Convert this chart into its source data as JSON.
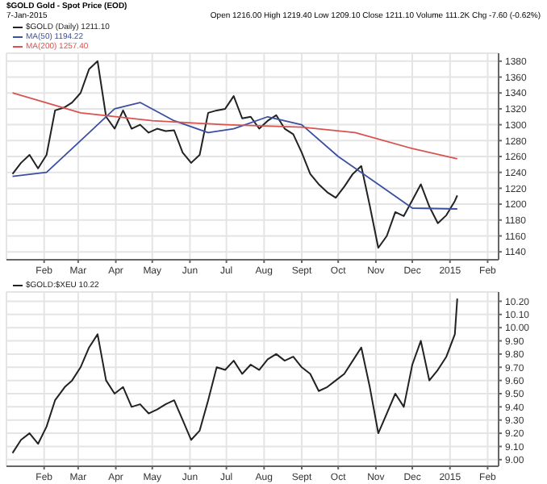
{
  "chart_data": [
    {
      "type": "line",
      "title": "$GOLD Gold - Spot Price (EOD)",
      "subtitle": "7-Jan-2015",
      "annotations": [
        "Open 1216.00  High 1219.40  Low 1209.10  Close 1211.10  Volume 111.2K  Chg -7.60 (-0.62%)"
      ],
      "legend": "top left",
      "grid": true,
      "xlim": [
        "2014-01-01",
        "2015-02-10"
      ],
      "xticks": [
        {
          "value": "2014-02-01",
          "label": "Feb"
        },
        {
          "value": "2014-03-01",
          "label": "Mar"
        },
        {
          "value": "2014-04-01",
          "label": "Apr"
        },
        {
          "value": "2014-05-01",
          "label": "May"
        },
        {
          "value": "2014-06-01",
          "label": "Jun"
        },
        {
          "value": "2014-07-01",
          "label": "Jul"
        },
        {
          "value": "2014-08-01",
          "label": "Aug"
        },
        {
          "value": "2014-09-01",
          "label": "Sept"
        },
        {
          "value": "2014-10-01",
          "label": "Oct"
        },
        {
          "value": "2014-11-01",
          "label": "Nov"
        },
        {
          "value": "2014-12-01",
          "label": "Dec"
        },
        {
          "value": "2015-01-01",
          "label": "2015"
        },
        {
          "value": "2015-02-01",
          "label": "Feb"
        }
      ],
      "ylim": [
        1130,
        1390
      ],
      "yticks": [
        1140,
        1160,
        1180,
        1200,
        1220,
        1240,
        1260,
        1280,
        1300,
        1320,
        1340,
        1360,
        1380
      ],
      "series": [
        {
          "name": "$GOLD (Daily) 1211.10",
          "color": "#222222",
          "x": [
            "2014-01-06",
            "2014-01-13",
            "2014-01-20",
            "2014-01-27",
            "2014-02-03",
            "2014-02-10",
            "2014-02-18",
            "2014-02-24",
            "2014-03-03",
            "2014-03-10",
            "2014-03-17",
            "2014-03-24",
            "2014-03-31",
            "2014-04-07",
            "2014-04-14",
            "2014-04-21",
            "2014-04-28",
            "2014-05-05",
            "2014-05-12",
            "2014-05-19",
            "2014-05-26",
            "2014-06-02",
            "2014-06-09",
            "2014-06-16",
            "2014-06-23",
            "2014-06-30",
            "2014-07-07",
            "2014-07-14",
            "2014-07-21",
            "2014-07-28",
            "2014-08-04",
            "2014-08-11",
            "2014-08-18",
            "2014-08-25",
            "2014-09-01",
            "2014-09-08",
            "2014-09-15",
            "2014-09-22",
            "2014-09-29",
            "2014-10-06",
            "2014-10-13",
            "2014-10-20",
            "2014-10-27",
            "2014-11-03",
            "2014-11-10",
            "2014-11-17",
            "2014-11-24",
            "2014-12-01",
            "2014-12-08",
            "2014-12-15",
            "2014-12-22",
            "2014-12-29",
            "2015-01-05",
            "2015-01-07"
          ],
          "values": [
            1238,
            1252,
            1262,
            1245,
            1262,
            1318,
            1322,
            1328,
            1340,
            1370,
            1380,
            1310,
            1295,
            1318,
            1295,
            1300,
            1290,
            1295,
            1292,
            1293,
            1265,
            1252,
            1262,
            1315,
            1318,
            1320,
            1336,
            1308,
            1310,
            1295,
            1305,
            1312,
            1295,
            1288,
            1265,
            1238,
            1225,
            1215,
            1208,
            1222,
            1238,
            1248,
            1198,
            1145,
            1160,
            1190,
            1185,
            1205,
            1225,
            1197,
            1176,
            1186,
            1204,
            1211
          ]
        },
        {
          "name": "MA(50) 1194.22",
          "color": "#3b4fa0",
          "x": [
            "2014-01-06",
            "2014-02-03",
            "2014-03-03",
            "2014-03-31",
            "2014-04-21",
            "2014-05-19",
            "2014-06-16",
            "2014-07-07",
            "2014-08-04",
            "2014-09-01",
            "2014-10-01",
            "2014-11-03",
            "2014-12-01",
            "2015-01-07"
          ],
          "values": [
            1235,
            1240,
            1280,
            1320,
            1328,
            1305,
            1290,
            1295,
            1310,
            1300,
            1260,
            1225,
            1195,
            1194
          ]
        },
        {
          "name": "MA(200) 1257.40",
          "color": "#d9534f",
          "x": [
            "2014-01-06",
            "2014-03-03",
            "2014-05-01",
            "2014-07-01",
            "2014-09-01",
            "2014-10-15",
            "2014-12-01",
            "2015-01-07"
          ],
          "values": [
            1340,
            1315,
            1305,
            1300,
            1297,
            1290,
            1270,
            1257
          ]
        }
      ]
    },
    {
      "type": "line",
      "legend": "top left",
      "grid": true,
      "xlim": [
        "2014-01-01",
        "2015-02-10"
      ],
      "xticks": [
        {
          "value": "2014-02-01",
          "label": "Feb"
        },
        {
          "value": "2014-03-01",
          "label": "Mar"
        },
        {
          "value": "2014-04-01",
          "label": "Apr"
        },
        {
          "value": "2014-05-01",
          "label": "May"
        },
        {
          "value": "2014-06-01",
          "label": "Jun"
        },
        {
          "value": "2014-07-01",
          "label": "Jul"
        },
        {
          "value": "2014-08-01",
          "label": "Aug"
        },
        {
          "value": "2014-09-01",
          "label": "Sept"
        },
        {
          "value": "2014-10-01",
          "label": "Oct"
        },
        {
          "value": "2014-11-01",
          "label": "Nov"
        },
        {
          "value": "2014-12-01",
          "label": "Dec"
        },
        {
          "value": "2015-01-01",
          "label": "2015"
        },
        {
          "value": "2015-02-01",
          "label": "Feb"
        }
      ],
      "ylim": [
        8.95,
        10.27
      ],
      "yticks": [
        {
          "value": 9,
          "label": "9.00"
        },
        {
          "value": 9.1,
          "label": "9.10"
        },
        {
          "value": 9.2,
          "label": "9.20"
        },
        {
          "value": 9.3,
          "label": "9.30"
        },
        {
          "value": 9.4,
          "label": "9.40"
        },
        {
          "value": 9.5,
          "label": "9.50"
        },
        {
          "value": 9.6,
          "label": "9.60"
        },
        {
          "value": 9.7,
          "label": "9.70"
        },
        {
          "value": 9.8,
          "label": "9.80"
        },
        {
          "value": 9.9,
          "label": "9.90"
        },
        {
          "value": 10,
          "label": "10.00"
        },
        {
          "value": 10.1,
          "label": "10.10"
        },
        {
          "value": 10.2,
          "label": "10.20"
        }
      ],
      "series": [
        {
          "name": "$GOLD:$XEU 10.22",
          "color": "#222222",
          "x": [
            "2014-01-06",
            "2014-01-13",
            "2014-01-20",
            "2014-01-27",
            "2014-02-03",
            "2014-02-10",
            "2014-02-18",
            "2014-02-24",
            "2014-03-03",
            "2014-03-10",
            "2014-03-17",
            "2014-03-24",
            "2014-03-31",
            "2014-04-07",
            "2014-04-14",
            "2014-04-21",
            "2014-04-28",
            "2014-05-05",
            "2014-05-12",
            "2014-05-19",
            "2014-05-26",
            "2014-06-02",
            "2014-06-09",
            "2014-06-16",
            "2014-06-23",
            "2014-06-30",
            "2014-07-07",
            "2014-07-14",
            "2014-07-21",
            "2014-07-28",
            "2014-08-04",
            "2014-08-11",
            "2014-08-18",
            "2014-08-25",
            "2014-09-01",
            "2014-09-08",
            "2014-09-15",
            "2014-09-22",
            "2014-09-29",
            "2014-10-06",
            "2014-10-13",
            "2014-10-20",
            "2014-10-27",
            "2014-11-03",
            "2014-11-10",
            "2014-11-17",
            "2014-11-24",
            "2014-12-01",
            "2014-12-08",
            "2014-12-15",
            "2014-12-22",
            "2014-12-29",
            "2015-01-05",
            "2015-01-07"
          ],
          "values": [
            9.05,
            9.15,
            9.2,
            9.12,
            9.25,
            9.45,
            9.55,
            9.6,
            9.7,
            9.85,
            9.95,
            9.6,
            9.5,
            9.55,
            9.4,
            9.42,
            9.35,
            9.38,
            9.42,
            9.45,
            9.3,
            9.15,
            9.22,
            9.45,
            9.7,
            9.68,
            9.75,
            9.65,
            9.72,
            9.68,
            9.76,
            9.8,
            9.75,
            9.78,
            9.7,
            9.65,
            9.52,
            9.55,
            9.6,
            9.65,
            9.75,
            9.85,
            9.55,
            9.2,
            9.35,
            9.5,
            9.4,
            9.72,
            9.9,
            9.6,
            9.68,
            9.78,
            9.95,
            10.22
          ]
        }
      ]
    }
  ]
}
